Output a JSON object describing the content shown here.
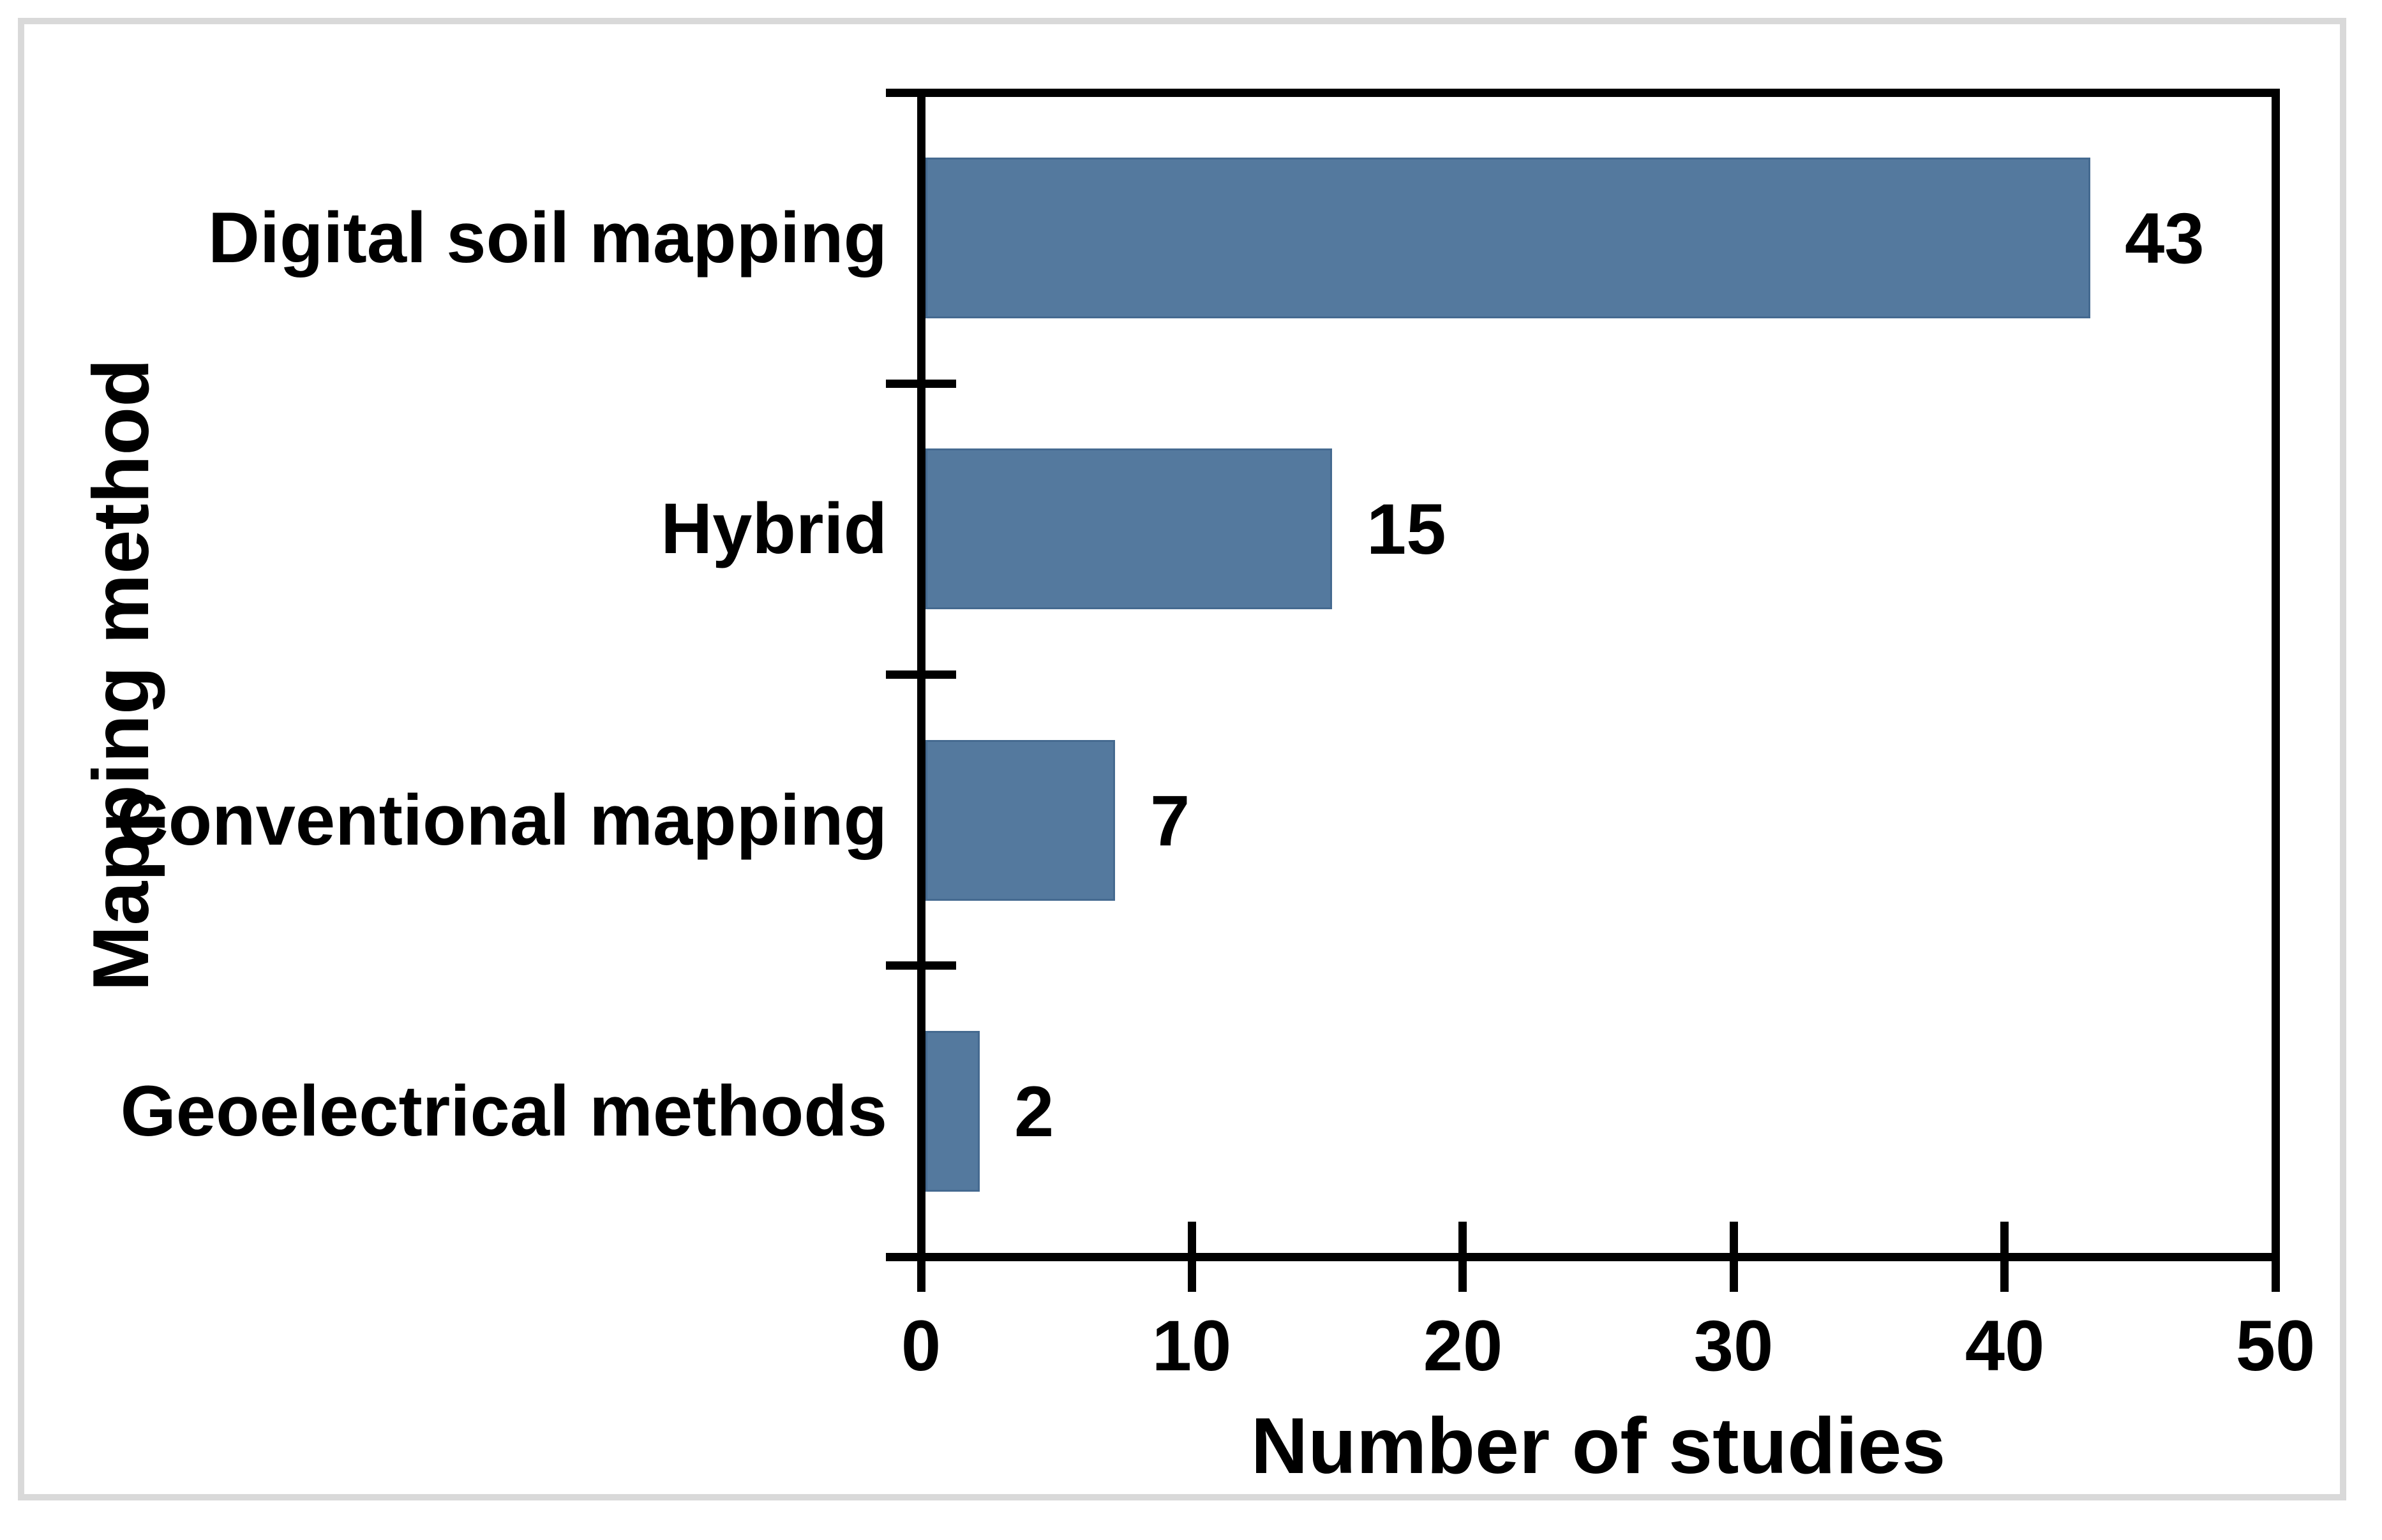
{
  "chart_data": {
    "type": "bar",
    "orientation": "horizontal",
    "title": "",
    "categories": [
      "Digital soil mapping",
      "Hybrid",
      "Conventional mapping",
      "Geoelectrical methods"
    ],
    "values": [
      43,
      15,
      7,
      2
    ],
    "data_labels": [
      "43",
      "15",
      "7",
      "2"
    ],
    "xlabel": "Number of studies",
    "ylabel": "Mapping method",
    "xlim": [
      0,
      50
    ],
    "x_ticks": [
      "0",
      "10",
      "20",
      "30",
      "40",
      "50"
    ],
    "grid": false,
    "legend": "none",
    "colors": {
      "bar_fill": "#54799E",
      "bar_border": "#456A90",
      "axis": "#000000",
      "text": "#000000",
      "outer_frame": "#D9D9D9",
      "background": "#FFFFFF"
    }
  }
}
